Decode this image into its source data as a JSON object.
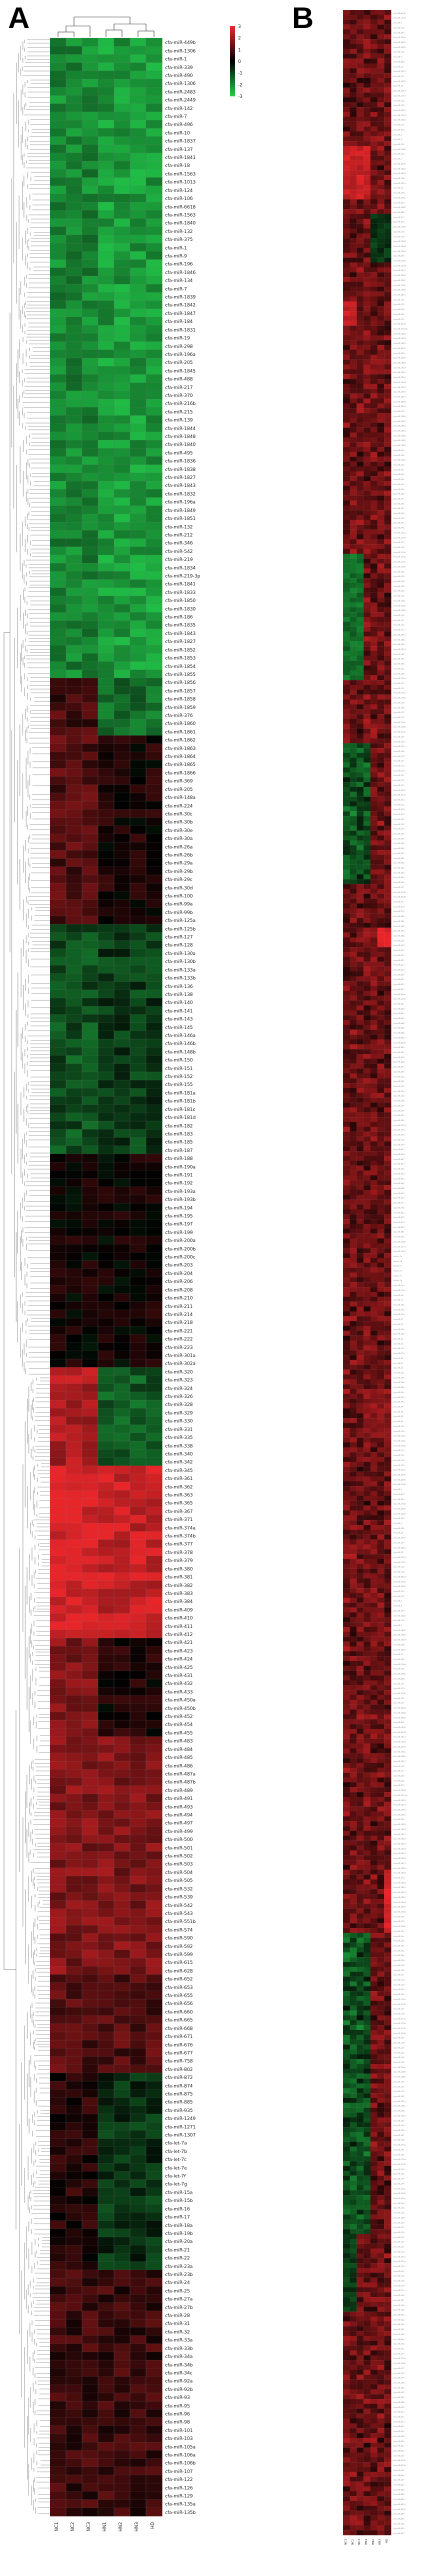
{
  "panel_a_label": "A",
  "panel_b_label": "B",
  "color_scale": {
    "low": "#22c84a",
    "mid": "#000000",
    "high": "#e8262a",
    "ticks": [
      "3",
      "2",
      "1",
      "0",
      "-1",
      "-2",
      "-3"
    ]
  },
  "heatmap_a": {
    "column_labels": [
      "NC1",
      "NC2",
      "NC3",
      "HN1",
      "HN2",
      "HN3",
      "HD"
    ],
    "row_labels": [
      "cfa-miR-449b",
      "cfa-miR-1306",
      "cfa-miR-1",
      "cfa-miR-339",
      "cfa-miR-490",
      "cfa-miR-1306",
      "cfa-miR-2483",
      "cfa-miR-2449",
      "cfa-miR-142",
      "cfa-miR-7",
      "cfa-miR-496",
      "cfa-miR-10",
      "cfa-miR-1837",
      "cfa-miR-137",
      "cfa-miR-1841",
      "cfa-miR-18",
      "cfa-miR-1563",
      "cfa-miR-1013",
      "cfa-miR-124",
      "cfa-miR-106",
      "cfa-miR-6618",
      "cfa-miR-1563",
      "cfa-miR-1840",
      "cfa-miR-132",
      "cfa-miR-375",
      "cfa-miR-1",
      "cfa-miR-9",
      "cfa-miR-196",
      "cfa-miR-1846",
      "cfa-miR-134",
      "cfa-miR-7",
      "cfa-miR-1839",
      "cfa-miR-1842",
      "cfa-miR-1847",
      "cfa-miR-184",
      "cfa-miR-1831",
      "cfa-miR-19",
      "cfa-miR-298",
      "cfa-miR-196a",
      "cfa-miR-205",
      "cfa-miR-1845",
      "cfa-miR-488",
      "cfa-miR-217",
      "cfa-miR-370",
      "cfa-miR-216b",
      "cfa-miR-215",
      "cfa-miR-139",
      "cfa-miR-1844",
      "cfa-miR-1848",
      "cfa-miR-1840",
      "cfa-miR-495",
      "cfa-miR-1836",
      "cfa-miR-1838",
      "cfa-miR-1827",
      "cfa-miR-1843",
      "cfa-miR-1832",
      "cfa-miR-196a",
      "cfa-miR-1849",
      "cfa-miR-1851",
      "cfa-miR-132",
      "cfa-miR-212",
      "cfa-miR-346",
      "cfa-miR-542",
      "cfa-miR-219",
      "cfa-miR-1834",
      "cfa-miR-219-3p",
      "cfa-miR-1841",
      "cfa-miR-1833",
      "cfa-miR-1850",
      "cfa-miR-1830",
      "cfa-miR-186",
      "cfa-miR-1835",
      "cfa-miR-1843",
      "cfa-miR-1827",
      "cfa-miR-1852",
      "cfa-miR-1853",
      "cfa-miR-1854",
      "cfa-miR-1855",
      "cfa-miR-1856",
      "cfa-miR-1857",
      "cfa-miR-1858",
      "cfa-miR-1859",
      "cfa-miR-376",
      "cfa-miR-1860",
      "cfa-miR-1861",
      "cfa-miR-1862",
      "cfa-miR-1863",
      "cfa-miR-1864",
      "cfa-miR-1865",
      "cfa-miR-1866",
      "cfa-miR-369",
      "cfa-miR-205",
      "cfa-miR-148a",
      "cfa-miR-224",
      "cfa-miR-30c",
      "cfa-miR-30b",
      "cfa-miR-30e",
      "cfa-miR-30a",
      "cfa-miR-26a",
      "cfa-miR-26b",
      "cfa-miR-29a",
      "cfa-miR-29b",
      "cfa-miR-29c",
      "cfa-miR-30d",
      "cfa-miR-100",
      "cfa-miR-99a",
      "cfa-miR-99b",
      "cfa-miR-125a",
      "cfa-miR-125b",
      "cfa-miR-127",
      "cfa-miR-128",
      "cfa-miR-130a",
      "cfa-miR-130b",
      "cfa-miR-133a",
      "cfa-miR-133b",
      "cfa-miR-136",
      "cfa-miR-138",
      "cfa-miR-140",
      "cfa-miR-141",
      "cfa-miR-143",
      "cfa-miR-145",
      "cfa-miR-146a",
      "cfa-miR-146b",
      "cfa-miR-148b",
      "cfa-miR-150",
      "cfa-miR-151",
      "cfa-miR-152",
      "cfa-miR-155",
      "cfa-miR-181a",
      "cfa-miR-181b",
      "cfa-miR-181c",
      "cfa-miR-181d",
      "cfa-miR-182",
      "cfa-miR-183",
      "cfa-miR-185",
      "cfa-miR-187",
      "cfa-miR-188",
      "cfa-miR-190a",
      "cfa-miR-191",
      "cfa-miR-192",
      "cfa-miR-193a",
      "cfa-miR-193b",
      "cfa-miR-194",
      "cfa-miR-195",
      "cfa-miR-197",
      "cfa-miR-199",
      "cfa-miR-200a",
      "cfa-miR-200b",
      "cfa-miR-200c",
      "cfa-miR-203",
      "cfa-miR-204",
      "cfa-miR-206",
      "cfa-miR-208",
      "cfa-miR-210",
      "cfa-miR-211",
      "cfa-miR-214",
      "cfa-miR-218",
      "cfa-miR-221",
      "cfa-miR-222",
      "cfa-miR-223",
      "cfa-miR-301a",
      "cfa-miR-302a",
      "cfa-miR-320",
      "cfa-miR-323",
      "cfa-miR-324",
      "cfa-miR-326",
      "cfa-miR-328",
      "cfa-miR-329",
      "cfa-miR-330",
      "cfa-miR-331",
      "cfa-miR-335",
      "cfa-miR-338",
      "cfa-miR-340",
      "cfa-miR-342",
      "cfa-miR-345",
      "cfa-miR-361",
      "cfa-miR-362",
      "cfa-miR-363",
      "cfa-miR-365",
      "cfa-miR-367",
      "cfa-miR-371",
      "cfa-miR-374a",
      "cfa-miR-374b",
      "cfa-miR-377",
      "cfa-miR-378",
      "cfa-miR-379",
      "cfa-miR-380",
      "cfa-miR-381",
      "cfa-miR-382",
      "cfa-miR-383",
      "cfa-miR-384",
      "cfa-miR-409",
      "cfa-miR-410",
      "cfa-miR-411",
      "cfa-miR-412",
      "cfa-miR-421",
      "cfa-miR-423",
      "cfa-miR-424",
      "cfa-miR-425",
      "cfa-miR-431",
      "cfa-miR-432",
      "cfa-miR-433",
      "cfa-miR-450a",
      "cfa-miR-450b",
      "cfa-miR-452",
      "cfa-miR-454",
      "cfa-miR-455",
      "cfa-miR-483",
      "cfa-miR-484",
      "cfa-miR-485",
      "cfa-miR-486",
      "cfa-miR-487a",
      "cfa-miR-487b",
      "cfa-miR-489",
      "cfa-miR-491",
      "cfa-miR-493",
      "cfa-miR-494",
      "cfa-miR-497",
      "cfa-miR-499",
      "cfa-miR-500",
      "cfa-miR-501",
      "cfa-miR-502",
      "cfa-miR-503",
      "cfa-miR-504",
      "cfa-miR-505",
      "cfa-miR-532",
      "cfa-miR-539",
      "cfa-miR-542",
      "cfa-miR-543",
      "cfa-miR-551b",
      "cfa-miR-574",
      "cfa-miR-590",
      "cfa-miR-592",
      "cfa-miR-599",
      "cfa-miR-615",
      "cfa-miR-628",
      "cfa-miR-652",
      "cfa-miR-653",
      "cfa-miR-655",
      "cfa-miR-656",
      "cfa-miR-660",
      "cfa-miR-665",
      "cfa-miR-668",
      "cfa-miR-671",
      "cfa-miR-676",
      "cfa-miR-677",
      "cfa-miR-758",
      "cfa-miR-802",
      "cfa-miR-872",
      "cfa-miR-874",
      "cfa-miR-875",
      "cfa-miR-885",
      "cfa-miR-935",
      "cfa-miR-1249",
      "cfa-miR-1271",
      "cfa-miR-1307",
      "cfa-let-7a",
      "cfa-let-7b",
      "cfa-let-7c",
      "cfa-let-7e",
      "cfa-let-7f",
      "cfa-let-7g",
      "cfa-miR-15a",
      "cfa-miR-15b",
      "cfa-miR-16",
      "cfa-miR-17",
      "cfa-miR-18a",
      "cfa-miR-19b",
      "cfa-miR-20a",
      "cfa-miR-21",
      "cfa-miR-22",
      "cfa-miR-23a",
      "cfa-miR-23b",
      "cfa-miR-24",
      "cfa-miR-25",
      "cfa-miR-27a",
      "cfa-miR-27b",
      "cfa-miR-28",
      "cfa-miR-31",
      "cfa-miR-32",
      "cfa-miR-33a",
      "cfa-miR-33b",
      "cfa-miR-34a",
      "cfa-miR-34b",
      "cfa-miR-34c",
      "cfa-miR-92a",
      "cfa-miR-92b",
      "cfa-miR-93",
      "cfa-miR-95",
      "cfa-miR-96",
      "cfa-miR-98",
      "cfa-miR-101",
      "cfa-miR-103",
      "cfa-miR-105a",
      "cfa-miR-106a",
      "cfa-miR-106b",
      "cfa-miR-107",
      "cfa-miR-122",
      "cfa-miR-126",
      "cfa-miR-129",
      "cfa-miR-135a",
      "cfa-miR-135b"
    ]
  },
  "heatmap_b": {
    "column_labels": [
      "NC1",
      "NC2",
      "NC3",
      "HN1",
      "HN2",
      "HN3",
      "HD"
    ]
  }
}
